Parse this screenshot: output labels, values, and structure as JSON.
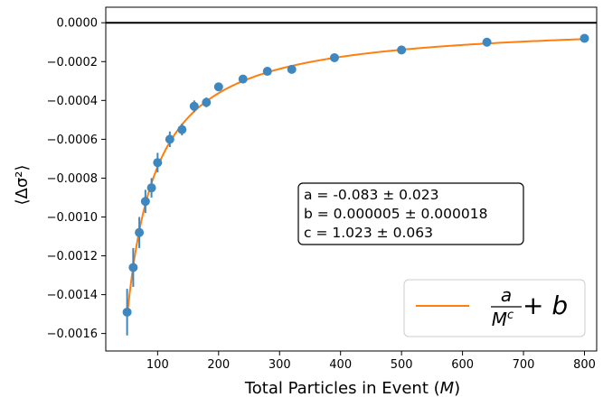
{
  "chart_data": {
    "type": "scatter",
    "xlabel_main": "Total Particles in Event (",
    "xlabel_var": "M",
    "xlabel_end": ")",
    "ylabel": "⟨Δσ²⟩",
    "xlim": [
      15,
      820
    ],
    "ylim": [
      -0.00169,
      8e-05
    ],
    "x_ticks": [
      100,
      200,
      300,
      400,
      500,
      600,
      700,
      800
    ],
    "x_tick_labels": [
      "100",
      "200",
      "300",
      "400",
      "500",
      "600",
      "700",
      "800"
    ],
    "y_ticks": [
      0.0,
      -0.0002,
      -0.0004,
      -0.0006,
      -0.0008,
      -0.001,
      -0.0012,
      -0.0014,
      -0.0016
    ],
    "y_tick_labels": [
      "0.0000",
      "−0.0002",
      "−0.0004",
      "−0.0006",
      "−0.0008",
      "−0.0010",
      "−0.0012",
      "−0.0014",
      "−0.0016"
    ],
    "grid": false,
    "reference_line_y": 0.0,
    "series": [
      {
        "kind": "errorbar-points",
        "color": "#3f88bf",
        "points": [
          {
            "x": 50,
            "y": -0.00149,
            "err": 0.00012
          },
          {
            "x": 60,
            "y": -0.00126,
            "err": 0.0001
          },
          {
            "x": 70,
            "y": -0.00108,
            "err": 8e-05
          },
          {
            "x": 80,
            "y": -0.00092,
            "err": 6e-05
          },
          {
            "x": 90,
            "y": -0.00085,
            "err": 5e-05
          },
          {
            "x": 100,
            "y": -0.00072,
            "err": 5e-05
          },
          {
            "x": 120,
            "y": -0.0006,
            "err": 4e-05
          },
          {
            "x": 140,
            "y": -0.00055,
            "err": 3e-05
          },
          {
            "x": 160,
            "y": -0.00043,
            "err": 3e-05
          },
          {
            "x": 180,
            "y": -0.00041,
            "err": 2.5e-05
          },
          {
            "x": 200,
            "y": -0.00033,
            "err": 2e-05
          },
          {
            "x": 240,
            "y": -0.00029,
            "err": 1.5e-05
          },
          {
            "x": 280,
            "y": -0.00025,
            "err": 1.2e-05
          },
          {
            "x": 320,
            "y": -0.00024,
            "err": 1e-05
          },
          {
            "x": 390,
            "y": -0.00018,
            "err": 8e-06
          },
          {
            "x": 500,
            "y": -0.00014,
            "err": 7e-06
          },
          {
            "x": 640,
            "y": -0.0001,
            "err": 6e-06
          },
          {
            "x": 800,
            "y": -8e-05,
            "err": 5e-06
          }
        ]
      },
      {
        "kind": "fit-line",
        "color": "#ff7f0e",
        "function": "a / M^c + b",
        "params": {
          "a": -0.083,
          "b": 5e-06,
          "c": 1.023
        },
        "x_range": [
          50,
          800
        ]
      }
    ],
    "annotation": {
      "lines": [
        "a = -0.083 ± 0.023",
        "b = 0.000005 ± 0.000018",
        "c = 1.023 ± 0.063"
      ],
      "placement": "center-right"
    },
    "legend": {
      "placement": "bottom-right",
      "num": "a",
      "den_base": "M",
      "den_exp": "c",
      "tail": " + b"
    }
  }
}
